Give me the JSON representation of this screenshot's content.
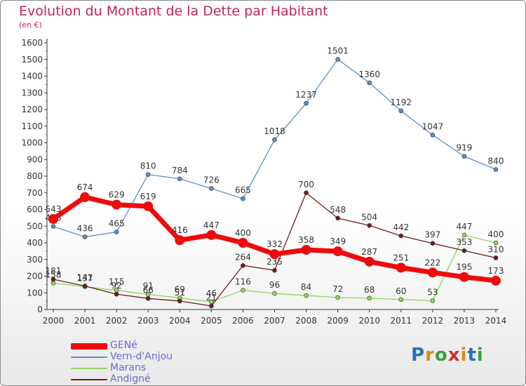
{
  "title": "Evolution du Montant de la Dette par Habitant",
  "unit": "(en €)",
  "logo": {
    "text": "Proxiti",
    "letter_colors": [
      "#2a6fb7",
      "#e08a1a",
      "#3aa03a",
      "#d12f2f",
      "#e08a1a",
      "#2a6fb7",
      "#3aa03a"
    ]
  },
  "chart_data": {
    "type": "line",
    "title": "Evolution du Montant de la Dette par Habitant",
    "ylabel": "(en €)",
    "xlabel": "",
    "x": [
      "2000",
      "2001",
      "2002",
      "2003",
      "2004",
      "2005",
      "2006",
      "2007",
      "2008",
      "2009",
      "2010",
      "2011",
      "2012",
      "2013",
      "2014"
    ],
    "ylim": [
      0,
      1600
    ],
    "yticks": [
      0,
      100,
      200,
      300,
      400,
      500,
      600,
      700,
      800,
      900,
      1000,
      1100,
      1200,
      1300,
      1400,
      1500,
      1600
    ],
    "grid": false,
    "legend_position": "bottom-left",
    "series": [
      {
        "name": "Vern-d'Anjou",
        "color": "#5b8fc7",
        "values": [
          498,
          436,
          465,
          810,
          784,
          726,
          665,
          1018,
          1237,
          1501,
          1360,
          1192,
          1047,
          919,
          840
        ]
      },
      {
        "name": "Marans",
        "color": "#8dd65a",
        "values": [
          158,
          137,
          115,
          91,
          69,
          46,
          116,
          96,
          84,
          72,
          68,
          60,
          53,
          447,
          400
        ]
      },
      {
        "name": "Andigné",
        "color": "#6e1c1c",
        "values": [
          181,
          141,
          92,
          66,
          51,
          21,
          264,
          235,
          700,
          548,
          504,
          442,
          397,
          353,
          310
        ]
      },
      {
        "name": "GENé",
        "color": "#ee0b0b",
        "values": [
          543,
          674,
          629,
          619,
          416,
          447,
          400,
          332,
          358,
          349,
          287,
          251,
          222,
          195,
          173
        ]
      }
    ]
  }
}
